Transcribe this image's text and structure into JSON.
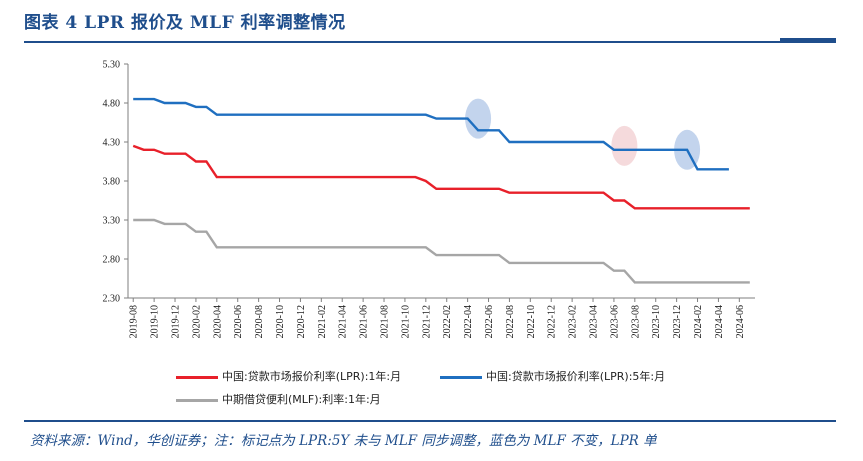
{
  "header": {
    "title": "图表 4   LPR 报价及 MLF 利率调整情况"
  },
  "footer": {
    "source": "资料来源：Wind，华创证券；注：标记点为 LPR:5Y 未与 MLF 同步调整，蓝色为 MLF 不变，LPR 单"
  },
  "colors": {
    "lpr1y": "#e8202a",
    "lpr5y": "#1f6fc0",
    "mlf": "#a6a6a6",
    "marker_blue": "#b9cdea",
    "marker_pink": "#f3d3d6"
  },
  "chart_data": {
    "type": "line",
    "ylim": [
      2.3,
      5.3
    ],
    "yticks": [
      "5.30",
      "4.80",
      "4.30",
      "3.80",
      "3.30",
      "2.80",
      "2.30"
    ],
    "xticks": [
      "2019-08",
      "2019-10",
      "2019-12",
      "2020-02",
      "2020-04",
      "2020-06",
      "2020-08",
      "2020-10",
      "2020-12",
      "2021-02",
      "2021-04",
      "2021-06",
      "2021-08",
      "2021-10",
      "2021-12",
      "2022-02",
      "2022-04",
      "2022-06",
      "2022-08",
      "2022-10",
      "2022-12",
      "2023-02",
      "2023-04",
      "2023-06",
      "2023-08",
      "2023-10",
      "2023-12",
      "2024-02",
      "2024-04",
      "2024-06"
    ],
    "series": [
      {
        "name": "中国:贷款市场报价利率(LPR):1年:月",
        "color_key": "lpr1y",
        "points": [
          [
            "2019-08",
            4.25
          ],
          [
            "2019-09",
            4.2
          ],
          [
            "2019-10",
            4.2
          ],
          [
            "2019-11",
            4.15
          ],
          [
            "2019-12",
            4.15
          ],
          [
            "2020-01",
            4.15
          ],
          [
            "2020-02",
            4.05
          ],
          [
            "2020-03",
            4.05
          ],
          [
            "2020-04",
            3.85
          ],
          [
            "2021-11",
            3.85
          ],
          [
            "2021-12",
            3.8
          ],
          [
            "2022-01",
            3.7
          ],
          [
            "2022-07",
            3.7
          ],
          [
            "2022-08",
            3.65
          ],
          [
            "2023-05",
            3.65
          ],
          [
            "2023-06",
            3.55
          ],
          [
            "2023-07",
            3.55
          ],
          [
            "2023-08",
            3.45
          ],
          [
            "2024-07",
            3.45
          ]
        ]
      },
      {
        "name": "中国:贷款市场报价利率(LPR):5年:月",
        "color_key": "lpr5y",
        "points": [
          [
            "2019-08",
            4.85
          ],
          [
            "2019-10",
            4.85
          ],
          [
            "2019-11",
            4.8
          ],
          [
            "2020-01",
            4.8
          ],
          [
            "2020-02",
            4.75
          ],
          [
            "2020-03",
            4.75
          ],
          [
            "2020-04",
            4.65
          ],
          [
            "2021-12",
            4.65
          ],
          [
            "2022-01",
            4.6
          ],
          [
            "2022-04",
            4.6
          ],
          [
            "2022-05",
            4.45
          ],
          [
            "2022-07",
            4.45
          ],
          [
            "2022-08",
            4.3
          ],
          [
            "2023-05",
            4.3
          ],
          [
            "2023-06",
            4.2
          ],
          [
            "2024-01",
            4.2
          ],
          [
            "2024-02",
            3.95
          ],
          [
            "2024-05",
            3.95
          ]
        ]
      },
      {
        "name": "中期借贷便利(MLF):利率:1年:月",
        "color_key": "mlf",
        "points": [
          [
            "2019-08",
            3.3
          ],
          [
            "2019-10",
            3.3
          ],
          [
            "2019-11",
            3.25
          ],
          [
            "2020-01",
            3.25
          ],
          [
            "2020-02",
            3.15
          ],
          [
            "2020-03",
            3.15
          ],
          [
            "2020-04",
            2.95
          ],
          [
            "2021-12",
            2.95
          ],
          [
            "2022-01",
            2.85
          ],
          [
            "2022-07",
            2.85
          ],
          [
            "2022-08",
            2.75
          ],
          [
            "2023-05",
            2.75
          ],
          [
            "2023-06",
            2.65
          ],
          [
            "2023-07",
            2.65
          ],
          [
            "2023-08",
            2.5
          ],
          [
            "2024-07",
            2.5
          ]
        ]
      }
    ],
    "markers": [
      {
        "x": "2022-05",
        "y": 4.6,
        "color_key": "marker_blue"
      },
      {
        "x": "2023-07",
        "y": 4.25,
        "color_key": "marker_pink"
      },
      {
        "x": "2024-01",
        "y": 4.2,
        "color_key": "marker_blue"
      }
    ]
  }
}
